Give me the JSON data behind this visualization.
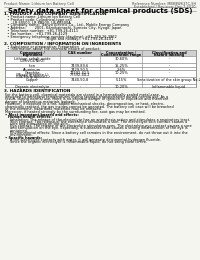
{
  "bg_color": "#f5f5f0",
  "header_left": "Product Name: Lithium Ion Battery Cell",
  "header_right_line1": "Reference Number: MB89W637C-SH",
  "header_right_line2": "Established / Revision: Dec.7.2010",
  "title": "Safety data sheet for chemical products (SDS)",
  "section1_title": "1. PRODUCT AND COMPANY IDENTIFICATION",
  "section1_lines": [
    "  • Product name: Lithium Ion Battery Cell",
    "  • Product code: Cylindrical-type cell",
    "       LR 6S500, LR 6B500, LR 6B500A",
    "  • Company name:  Sanyo Electric Co., Ltd., Mobile Energy Company",
    "  • Address:        2001, Kamikaimachi, Sumoto City, Hyogo, Japan",
    "  • Telephone number:  +81-799-26-4111",
    "  • Fax number:   +81-799-26-4129",
    "  • Emergency telephone number (daytime): +81-799-26-3962",
    "                                    (Night and holiday): +81-799-26-4101"
  ],
  "section2_title": "2. COMPOSITION / INFORMATION ON INGREDIENTS",
  "section2_lines": [
    "  • Substance or preparation: Preparation",
    "  • Information about the chemical nature of product:"
  ],
  "table_headers": [
    "Component / \nIngredient",
    "CAS number",
    "Concentration /\nConcentration range",
    "Classification and\nhazard labeling"
  ],
  "table_rows": [
    [
      "Lithium cobalt oxide\n(LiMn/Co/Ni/O)",
      "-",
      "30-60%",
      "-"
    ],
    [
      "Iron",
      "7439-89-6",
      "15-25%",
      "-"
    ],
    [
      "Aluminum",
      "7429-90-5",
      "2-6%",
      "-"
    ],
    [
      "Graphite\n(Mixed graphite-L)\n(LW/Mn graphite-L)",
      "77592-42-5\n77592-44-2",
      "10-25%",
      "-"
    ],
    [
      "Copper",
      "7440-50-8",
      "5-15%",
      "Sensitization of the skin group No.2"
    ],
    [
      "Organic electrolyte",
      "-",
      "10-20%",
      "Inflammable liquid"
    ]
  ],
  "section3_title": "3. HAZARDS IDENTIFICATION",
  "section3_para1": "For the battery cell, chemical materials are stored in a hermetically sealed metal case, designed to withstand temperatures during storage-transportation during normal use. As a result, during normal use, there is no physical danger of ignition or explosion and therefore danger of hazardous materials leakage.",
  "section3_para2": "However, if exposed to a fire, added mechanical shocks, decomposition, or heat, electro-chemically reacted, the gas insides cannot be operated. The battery cell case will be breached at the extreme, hazardous materials may be released.",
  "section3_para3": "Moreover, if heated strongly by the surrounding fire, soot gas may be emitted.",
  "section3_bullet1": "• Most important hazard and effects:",
  "section3_human": "Human health effects:",
  "section3_human_lines": [
    "Inhalation: The release of the electrolyte has an anesthesia action and stimulates a respiratory tract.",
    "Skin contact: The release of the electrolyte stimulates a skin. The electrolyte skin contact causes a",
    "sore and stimulation on the skin.",
    "Eye contact: The release of the electrolyte stimulates eyes. The electrolyte eye contact causes a sore",
    "and stimulation on the eye. Especially, a substance that causes a strong inflammation of the eye is",
    "contained.",
    "Environmental effects: Since a battery cell remains in the environment, do not throw out it into the",
    "environment."
  ],
  "section3_specific": "• Specific hazards:",
  "section3_specific_lines": [
    "If the electrolyte contacts with water, it will generate detrimental hydrogen fluoride.",
    "Since the organic electrolyte is inflammable liquid, do not bring close to fire."
  ]
}
